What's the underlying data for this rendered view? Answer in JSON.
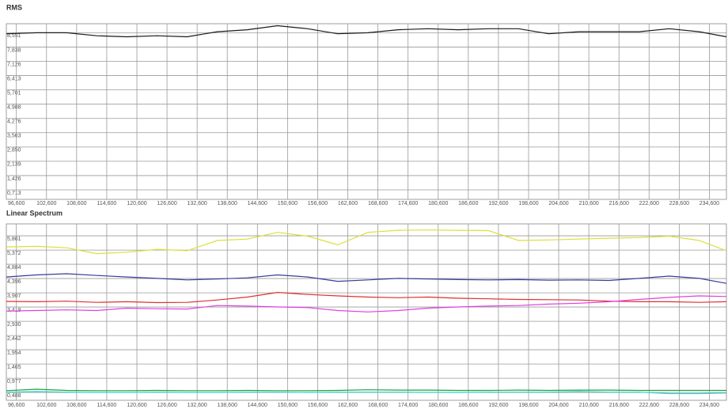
{
  "chart_data": [
    {
      "type": "line",
      "title": "RMS",
      "x": [
        94600,
        100600,
        106600,
        112600,
        118600,
        124600,
        130600,
        136600,
        142600,
        148600,
        154600,
        160600,
        166600,
        172600,
        178600,
        184600,
        190600,
        196600,
        202600,
        208600,
        214600,
        220600,
        226600,
        232600,
        238000
      ],
      "series": [
        {
          "color": "#1a1a1a",
          "values": [
            8.5,
            8.55,
            8.55,
            8.4,
            8.35,
            8.4,
            8.35,
            8.6,
            8.7,
            8.9,
            8.75,
            8.5,
            8.55,
            8.7,
            8.75,
            8.7,
            8.75,
            8.75,
            8.5,
            8.6,
            8.6,
            8.6,
            8.75,
            8.6,
            8.35
          ]
        }
      ],
      "xlim": [
        94600,
        238000
      ],
      "xticks": [
        {
          "value": 96600,
          "label": "96,600"
        },
        {
          "value": 102600,
          "label": "102,600"
        },
        {
          "value": 108600,
          "label": "108,600"
        },
        {
          "value": 114600,
          "label": "114,600"
        },
        {
          "value": 120600,
          "label": "120,600"
        },
        {
          "value": 126600,
          "label": "126,600"
        },
        {
          "value": 132600,
          "label": "132,600"
        },
        {
          "value": 138600,
          "label": "138,600"
        },
        {
          "value": 144600,
          "label": "144,600"
        },
        {
          "value": 150600,
          "label": "150,600"
        },
        {
          "value": 156600,
          "label": "156,600"
        },
        {
          "value": 162600,
          "label": "162,600"
        },
        {
          "value": 168600,
          "label": "168,600"
        },
        {
          "value": 174600,
          "label": "174,600"
        },
        {
          "value": 180600,
          "label": "180,600"
        },
        {
          "value": 186600,
          "label": "186,600"
        },
        {
          "value": 192600,
          "label": "192,600"
        },
        {
          "value": 198600,
          "label": "198,600"
        },
        {
          "value": 204600,
          "label": "204,600"
        },
        {
          "value": 210600,
          "label": "210,600"
        },
        {
          "value": 216600,
          "label": "216,600"
        },
        {
          "value": 222600,
          "label": "222,600"
        },
        {
          "value": 228600,
          "label": "228,600"
        },
        {
          "value": 234600,
          "label": "234,600"
        }
      ],
      "ylim": [
        0.24,
        9.0
      ],
      "yticks": [
        {
          "value": 0.713,
          "label": "0,713"
        },
        {
          "value": 1.426,
          "label": "1,426"
        },
        {
          "value": 2.139,
          "label": "2,139"
        },
        {
          "value": 2.85,
          "label": "2,850"
        },
        {
          "value": 3.563,
          "label": "3,563"
        },
        {
          "value": 4.276,
          "label": "4,276"
        },
        {
          "value": 4.988,
          "label": "4,988"
        },
        {
          "value": 5.701,
          "label": "5,701"
        },
        {
          "value": 6.413,
          "label": "6,413"
        },
        {
          "value": 7.126,
          "label": "7,126"
        },
        {
          "value": 7.838,
          "label": "7,838"
        },
        {
          "value": 8.551,
          "label": "8,551"
        }
      ],
      "grid": true
    },
    {
      "type": "line",
      "title": "Linear Spectrum",
      "x": [
        94600,
        100600,
        106600,
        112600,
        118600,
        124600,
        130600,
        136600,
        142600,
        148600,
        154600,
        160600,
        166600,
        172600,
        178600,
        184600,
        190600,
        196600,
        202600,
        208600,
        214600,
        220600,
        226600,
        232600,
        238000
      ],
      "series": [
        {
          "color": "#dede3c",
          "values": [
            5.48,
            5.5,
            5.45,
            5.25,
            5.3,
            5.4,
            5.35,
            5.7,
            5.75,
            5.98,
            5.85,
            5.55,
            5.98,
            6.05,
            6.06,
            6.05,
            6.04,
            5.7,
            5.72,
            5.75,
            5.78,
            5.8,
            5.85,
            5.7,
            5.35
          ]
        },
        {
          "color": "#3b3b9c",
          "values": [
            4.45,
            4.52,
            4.56,
            4.5,
            4.45,
            4.4,
            4.35,
            4.38,
            4.42,
            4.52,
            4.45,
            4.3,
            4.35,
            4.4,
            4.38,
            4.36,
            4.35,
            4.36,
            4.34,
            4.35,
            4.33,
            4.4,
            4.48,
            4.4,
            4.23
          ]
        },
        {
          "color": "#e03030",
          "values": [
            3.61,
            3.6,
            3.62,
            3.58,
            3.6,
            3.57,
            3.58,
            3.66,
            3.76,
            3.92,
            3.85,
            3.8,
            3.76,
            3.74,
            3.76,
            3.72,
            3.7,
            3.68,
            3.67,
            3.66,
            3.62,
            3.6,
            3.6,
            3.58,
            3.6
          ]
        },
        {
          "color": "#e040e0",
          "values": [
            3.28,
            3.3,
            3.32,
            3.3,
            3.38,
            3.36,
            3.35,
            3.47,
            3.45,
            3.42,
            3.4,
            3.3,
            3.25,
            3.3,
            3.38,
            3.42,
            3.45,
            3.47,
            3.52,
            3.55,
            3.6,
            3.68,
            3.75,
            3.8,
            3.78
          ]
        },
        {
          "color": "#20a040",
          "values": [
            0.55,
            0.6,
            0.56,
            0.55,
            0.55,
            0.56,
            0.55,
            0.55,
            0.56,
            0.55,
            0.55,
            0.56,
            0.58,
            0.57,
            0.57,
            0.56,
            0.56,
            0.57,
            0.56,
            0.57,
            0.57,
            0.56,
            0.56,
            0.56,
            0.56
          ]
        },
        {
          "color": "#30d0d0",
          "values": [
            0.5,
            0.52,
            0.5,
            0.49,
            0.49,
            0.5,
            0.49,
            0.49,
            0.5,
            0.5,
            0.49,
            0.5,
            0.5,
            0.5,
            0.49,
            0.49,
            0.5,
            0.5,
            0.5,
            0.52,
            0.5,
            0.5,
            0.45,
            0.45,
            0.47
          ]
        }
      ],
      "xlim": [
        94600,
        238000
      ],
      "xticks": [
        {
          "value": 96600,
          "label": "96,600"
        },
        {
          "value": 102600,
          "label": "102,600"
        },
        {
          "value": 108600,
          "label": "108,600"
        },
        {
          "value": 114600,
          "label": "114,600"
        },
        {
          "value": 120600,
          "label": "120,600"
        },
        {
          "value": 126600,
          "label": "126,600"
        },
        {
          "value": 132600,
          "label": "132,600"
        },
        {
          "value": 138600,
          "label": "138,600"
        },
        {
          "value": 144600,
          "label": "144,600"
        },
        {
          "value": 150600,
          "label": "150,600"
        },
        {
          "value": 156600,
          "label": "156,600"
        },
        {
          "value": 162600,
          "label": "162,600"
        },
        {
          "value": 168600,
          "label": "168,600"
        },
        {
          "value": 174600,
          "label": "174,600"
        },
        {
          "value": 180600,
          "label": "180,600"
        },
        {
          "value": 186600,
          "label": "186,600"
        },
        {
          "value": 192600,
          "label": "192,600"
        },
        {
          "value": 198600,
          "label": "198,600"
        },
        {
          "value": 204600,
          "label": "204,600"
        },
        {
          "value": 210600,
          "label": "210,600"
        },
        {
          "value": 216600,
          "label": "216,600"
        },
        {
          "value": 222600,
          "label": "222,600"
        },
        {
          "value": 228600,
          "label": "228,600"
        },
        {
          "value": 234600,
          "label": "234,600"
        }
      ],
      "ylim": [
        0.22,
        6.27
      ],
      "yticks": [
        {
          "value": 0.488,
          "label": "0,488"
        },
        {
          "value": 0.977,
          "label": "0,977"
        },
        {
          "value": 1.465,
          "label": "1,465"
        },
        {
          "value": 1.954,
          "label": "1,954"
        },
        {
          "value": 2.442,
          "label": "2,442"
        },
        {
          "value": 2.93,
          "label": "2,930"
        },
        {
          "value": 3.419,
          "label": "3,419"
        },
        {
          "value": 3.907,
          "label": "3,907"
        },
        {
          "value": 4.396,
          "label": "4,396"
        },
        {
          "value": 4.884,
          "label": "4,884"
        },
        {
          "value": 5.372,
          "label": "5,372"
        },
        {
          "value": 5.861,
          "label": "5,861"
        }
      ],
      "grid": true
    }
  ]
}
